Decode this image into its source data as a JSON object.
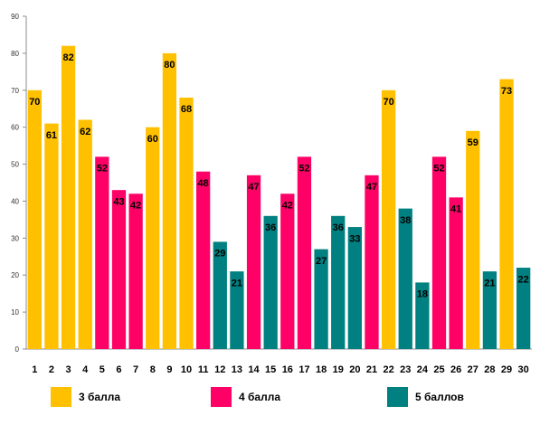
{
  "chart_data": {
    "type": "bar",
    "categories": [
      "1",
      "2",
      "3",
      "4",
      "5",
      "6",
      "7",
      "8",
      "9",
      "10",
      "11",
      "12",
      "13",
      "14",
      "15",
      "16",
      "17",
      "18",
      "19",
      "20",
      "21",
      "22",
      "23",
      "24",
      "25",
      "26",
      "27",
      "28",
      "29",
      "30"
    ],
    "values": [
      70,
      61,
      82,
      62,
      52,
      43,
      42,
      60,
      80,
      68,
      48,
      29,
      21,
      47,
      36,
      42,
      52,
      27,
      36,
      33,
      47,
      70,
      38,
      18,
      52,
      41,
      59,
      21,
      73,
      22
    ],
    "groups": [
      "3",
      "3",
      "3",
      "3",
      "4",
      "4",
      "4",
      "3",
      "3",
      "3",
      "4",
      "5",
      "5",
      "4",
      "5",
      "4",
      "4",
      "5",
      "5",
      "5",
      "4",
      "3",
      "5",
      "5",
      "4",
      "4",
      "3",
      "5",
      "3",
      "5"
    ],
    "ylim": [
      0,
      90
    ],
    "yticks": [
      0,
      10,
      20,
      30,
      40,
      50,
      60,
      70,
      80,
      90
    ],
    "grid": false,
    "legend_position": "bottom",
    "legend": [
      {
        "key": "3",
        "label": "3 балла",
        "color": "#FFC000"
      },
      {
        "key": "4",
        "label": "4 балла",
        "color": "#FF0066"
      },
      {
        "key": "5",
        "label": "5 баллов",
        "color": "#008080"
      }
    ],
    "title": "",
    "xlabel": "",
    "ylabel": ""
  }
}
